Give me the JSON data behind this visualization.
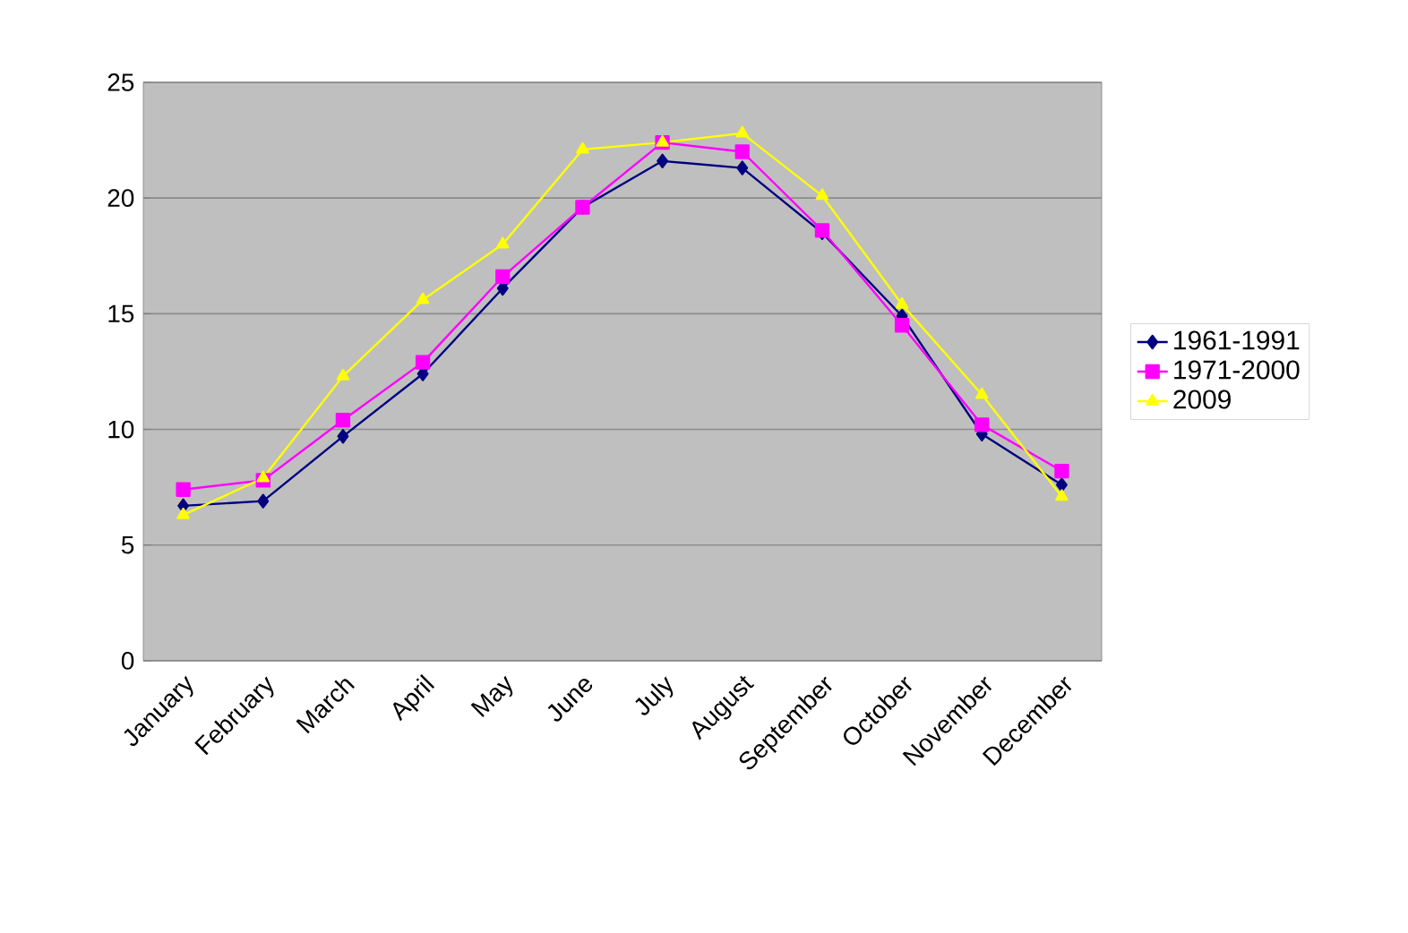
{
  "chart_data": {
    "type": "line",
    "categories": [
      "January",
      "February",
      "March",
      "April",
      "May",
      "June",
      "July",
      "August",
      "September",
      "October",
      "November",
      "December"
    ],
    "series": [
      {
        "name": "1961-1991",
        "color": "#000080",
        "marker": "diamond",
        "values": [
          6.7,
          6.9,
          9.7,
          12.4,
          16.1,
          19.6,
          21.6,
          21.3,
          18.5,
          14.9,
          9.8,
          7.6
        ]
      },
      {
        "name": "1971-2000",
        "color": "#ff00ff",
        "marker": "square",
        "values": [
          7.4,
          7.8,
          10.4,
          12.9,
          16.6,
          19.6,
          22.4,
          22.0,
          18.6,
          14.5,
          10.2,
          8.2
        ]
      },
      {
        "name": "2009",
        "color": "#ffff00",
        "marker": "triangle",
        "values": [
          6.3,
          7.9,
          12.3,
          15.6,
          18.0,
          22.1,
          22.4,
          22.8,
          20.1,
          15.4,
          11.5,
          7.1
        ]
      }
    ],
    "ylim": [
      0,
      25
    ],
    "yticks": [
      0,
      5,
      10,
      15,
      20,
      25
    ],
    "grid": "y",
    "legend": "right"
  }
}
